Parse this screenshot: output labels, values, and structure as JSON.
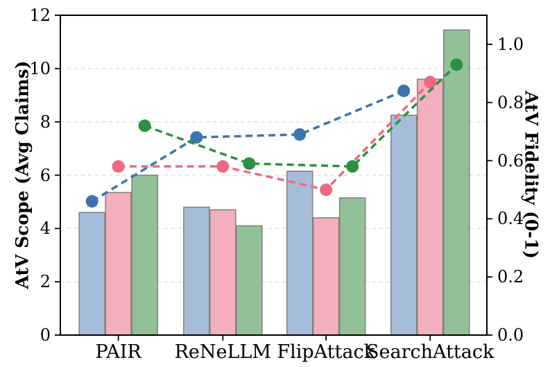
{
  "chart_data": {
    "type": "bar",
    "title": "",
    "categories": [
      "PAIR",
      "ReNeLLM",
      "FlipAttack",
      "SearchAttack"
    ],
    "ylabel_left": "AtV Scope (Avg Claims)",
    "ylabel_right": "AtV Fidelity (0-1)",
    "ylim_left": [
      0,
      12
    ],
    "ylim_right": [
      0,
      1.1
    ],
    "yticks_left": [
      "0",
      "2",
      "4",
      "6",
      "8",
      "10",
      "12"
    ],
    "yticks_left_values": [
      0,
      2,
      4,
      6,
      8,
      10,
      12
    ],
    "yticks_right": [
      "0.0",
      "0.2",
      "0.4",
      "0.6",
      "0.8",
      "1.0"
    ],
    "yticks_right_values": [
      0.0,
      0.2,
      0.4,
      0.6,
      0.8,
      1.0
    ],
    "grid": "horizontal-dashed",
    "legend": "none",
    "bar_series": [
      {
        "name": "blue-bars",
        "color": "#a5bdd8",
        "values": [
          4.6,
          4.8,
          6.15,
          8.25
        ]
      },
      {
        "name": "pink-bars",
        "color": "#f3afbb",
        "values": [
          5.35,
          4.7,
          4.4,
          9.6
        ]
      },
      {
        "name": "green-bars",
        "color": "#92c199",
        "values": [
          6.0,
          4.1,
          5.15,
          11.45
        ]
      }
    ],
    "line_series": [
      {
        "name": "blue-line",
        "color": "#3c74ae",
        "axis": "right",
        "values": [
          0.46,
          0.68,
          0.69,
          0.84
        ]
      },
      {
        "name": "pink-line",
        "color": "#ee6880",
        "axis": "right",
        "values": [
          0.58,
          0.58,
          0.5,
          0.87
        ]
      },
      {
        "name": "green-line",
        "color": "#2b9140",
        "axis": "right",
        "values": [
          0.72,
          0.59,
          0.58,
          0.93
        ]
      }
    ],
    "bar_edge_color": "#7f7f7f",
    "grid_color": "#dcdcdc",
    "spine_color": "#000000"
  }
}
